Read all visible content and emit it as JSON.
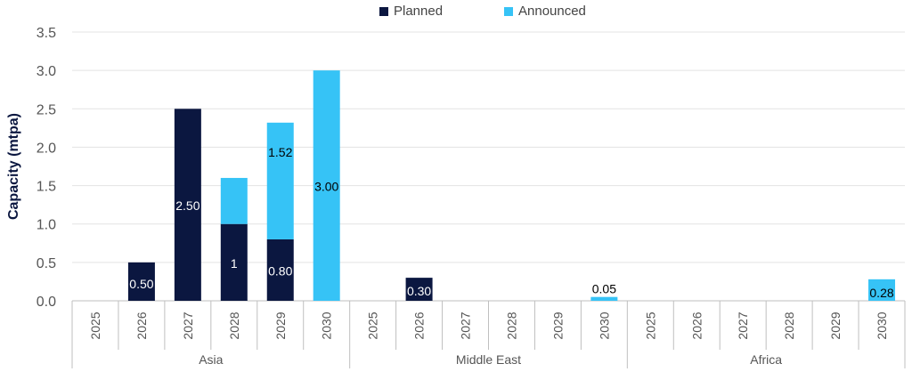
{
  "chart_data": {
    "type": "bar",
    "stacked": true,
    "ylabel": "Capacity (mtpa)",
    "ylim": [
      0,
      3.5
    ],
    "yticks": [
      "0.0",
      "0.5",
      "1.0",
      "1.5",
      "2.0",
      "2.5",
      "3.0",
      "3.5"
    ],
    "ytick_values": [
      0,
      0.5,
      1.0,
      1.5,
      2.0,
      2.5,
      3.0,
      3.5
    ],
    "grid": true,
    "legend_position": "top-center",
    "groups": [
      {
        "name": "Asia",
        "categories": [
          "2025",
          "2026",
          "2027",
          "2028",
          "2029",
          "2030"
        ]
      },
      {
        "name": "Middle East",
        "categories": [
          "2025",
          "2026",
          "2027",
          "2028",
          "2029",
          "2030"
        ]
      },
      {
        "name": "Africa",
        "categories": [
          "2025",
          "2026",
          "2027",
          "2028",
          "2029",
          "2030"
        ]
      }
    ],
    "series": [
      {
        "name": "Planned",
        "color": "#0b1740",
        "values": [
          0,
          0.5,
          2.5,
          1.0,
          0.8,
          0,
          0,
          0.3,
          0,
          0,
          0,
          0,
          0,
          0,
          0,
          0,
          0,
          0
        ],
        "labels": [
          "",
          "0.50",
          "2.50",
          "1",
          "0.80",
          "",
          "",
          "0.30",
          "",
          "",
          "",
          "",
          "",
          "",
          "",
          "",
          "",
          ""
        ]
      },
      {
        "name": "Announced",
        "color": "#36c3f6",
        "values": [
          0,
          0,
          0,
          0.6,
          1.52,
          3.0,
          0,
          0,
          0,
          0,
          0,
          0.05,
          0,
          0,
          0,
          0,
          0,
          0.28
        ],
        "labels": [
          "",
          "",
          "",
          "",
          "1.52",
          "3.00",
          "",
          "",
          "",
          "",
          "",
          "0.05",
          "",
          "",
          "",
          "",
          "",
          "0.28"
        ]
      }
    ]
  }
}
